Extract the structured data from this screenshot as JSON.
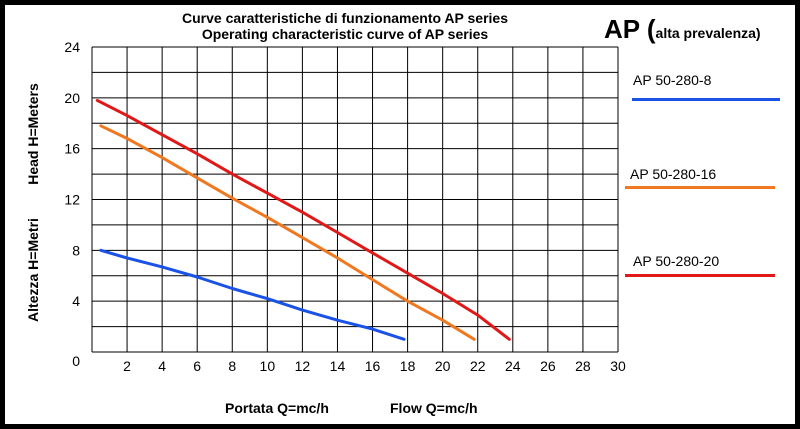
{
  "chart_data": {
    "type": "line",
    "title": "Curve caratteristiche di funzionamento AP series",
    "subtitle": "Operating characteristic curve of AP series",
    "xlabel_it": "Portata Q=mc/h",
    "xlabel_en": "Flow Q=mc/h",
    "ylabel_en": "Head H=Meters",
    "ylabel_it": "Altezza H=Metri",
    "xlim": [
      0,
      30
    ],
    "ylim": [
      0,
      24
    ],
    "x_ticks": [
      2,
      4,
      6,
      8,
      10,
      12,
      14,
      16,
      18,
      20,
      22,
      24,
      26,
      28,
      30
    ],
    "y_ticks": [
      0,
      4,
      8,
      12,
      16,
      20,
      24
    ],
    "grid": true,
    "legend_position": "right",
    "series": [
      {
        "name": "AP 50-280-8",
        "color": "#1a52e8",
        "points": [
          [
            0.5,
            8
          ],
          [
            2,
            7.4
          ],
          [
            4,
            6.7
          ],
          [
            6,
            5.9
          ],
          [
            8,
            5
          ],
          [
            10,
            4.2
          ],
          [
            12,
            3.3
          ],
          [
            14,
            2.5
          ],
          [
            16,
            1.8
          ],
          [
            17.8,
            1
          ]
        ]
      },
      {
        "name": "AP 50-280-16",
        "color": "#f07820",
        "points": [
          [
            0.5,
            17.8
          ],
          [
            2,
            16.8
          ],
          [
            4,
            15.3
          ],
          [
            6,
            13.7
          ],
          [
            8,
            12.1
          ],
          [
            10,
            10.6
          ],
          [
            12,
            9
          ],
          [
            14,
            7.4
          ],
          [
            16,
            5.7
          ],
          [
            18,
            4
          ],
          [
            20,
            2.5
          ],
          [
            21.8,
            1
          ]
        ]
      },
      {
        "name": "AP 50-280-20",
        "color": "#e01818",
        "points": [
          [
            0.3,
            19.8
          ],
          [
            2,
            18.6
          ],
          [
            4,
            17.1
          ],
          [
            6,
            15.6
          ],
          [
            8,
            14
          ],
          [
            10,
            12.5
          ],
          [
            12,
            11
          ],
          [
            14,
            9.4
          ],
          [
            16,
            7.8
          ],
          [
            18,
            6.2
          ],
          [
            20,
            4.6
          ],
          [
            22,
            2.9
          ],
          [
            23.8,
            1
          ]
        ]
      }
    ]
  },
  "brand": {
    "main": "AP (",
    "sub": "alta prevalenza)"
  }
}
